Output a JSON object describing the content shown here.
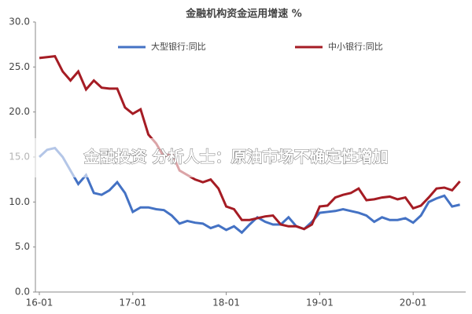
{
  "chart_data": {
    "type": "line",
    "title": "金融机构资金运用增速 %",
    "categories": [
      "16-01",
      null,
      null,
      null,
      null,
      null,
      null,
      null,
      null,
      null,
      null,
      null,
      "17-01",
      null,
      null,
      null,
      null,
      null,
      null,
      null,
      null,
      null,
      null,
      null,
      "18-01",
      null,
      null,
      null,
      null,
      null,
      null,
      null,
      null,
      null,
      null,
      null,
      "19-01",
      null,
      null,
      null,
      null,
      null,
      null,
      null,
      null,
      null,
      null,
      null,
      "20-01",
      null,
      null,
      null,
      null,
      null,
      null
    ],
    "series": [
      {
        "name": "大型银行:同比",
        "color": "#4472c4",
        "values": [
          15,
          15.8,
          16,
          15,
          13.5,
          12,
          13,
          11,
          10.8,
          11.3,
          12.2,
          11,
          8.9,
          9.4,
          9.4,
          9.2,
          9.1,
          8.5,
          7.6,
          7.9,
          7.7,
          7.6,
          7.1,
          7.4,
          6.9,
          7.3,
          6.6,
          7.5,
          8.3,
          7.8,
          7.5,
          7.5,
          8.3,
          7.3,
          7.0,
          7.8,
          8.8,
          8.9,
          9.0,
          9.2,
          9.0,
          8.8,
          8.5,
          7.8,
          8.3,
          8.0,
          8.0,
          8.2,
          7.7,
          8.5,
          10.0,
          10.4,
          10.7,
          9.5,
          9.7
        ]
      },
      {
        "name": "中小银行:同比",
        "color": "#a51c24",
        "values": [
          26,
          26.1,
          26.2,
          24.5,
          23.5,
          24.5,
          22.5,
          23.5,
          22.7,
          22.6,
          22.6,
          20.5,
          19.8,
          20.3,
          17.5,
          16.5,
          15,
          15.5,
          13.5,
          13,
          12.5,
          12.2,
          12.5,
          11.5,
          9.5,
          9.2,
          8,
          8.0,
          8.2,
          8.4,
          8.5,
          7.5,
          7.3,
          7.3,
          7.0,
          7.5,
          9.5,
          9.6,
          10.5,
          10.8,
          11.0,
          11.5,
          10.2,
          10.3,
          10.5,
          10.6,
          10.3,
          10.5,
          9.3,
          9.6,
          10.5,
          11.5,
          11.6,
          11.3,
          12.3
        ]
      }
    ],
    "ylim": [
      0,
      30
    ],
    "yticks": [
      {
        "value": 0,
        "label": "0.0"
      },
      {
        "value": 5,
        "label": "5.0"
      },
      {
        "value": 10,
        "label": "10.0"
      },
      {
        "value": 15,
        "label": "15.0"
      },
      {
        "value": 20,
        "label": "20.0"
      },
      {
        "value": 25,
        "label": "25.0"
      },
      {
        "value": 30,
        "label": "30.0"
      }
    ]
  },
  "overlay": {
    "text": "金融投资 分析人士：原油市场不确定性增加"
  }
}
